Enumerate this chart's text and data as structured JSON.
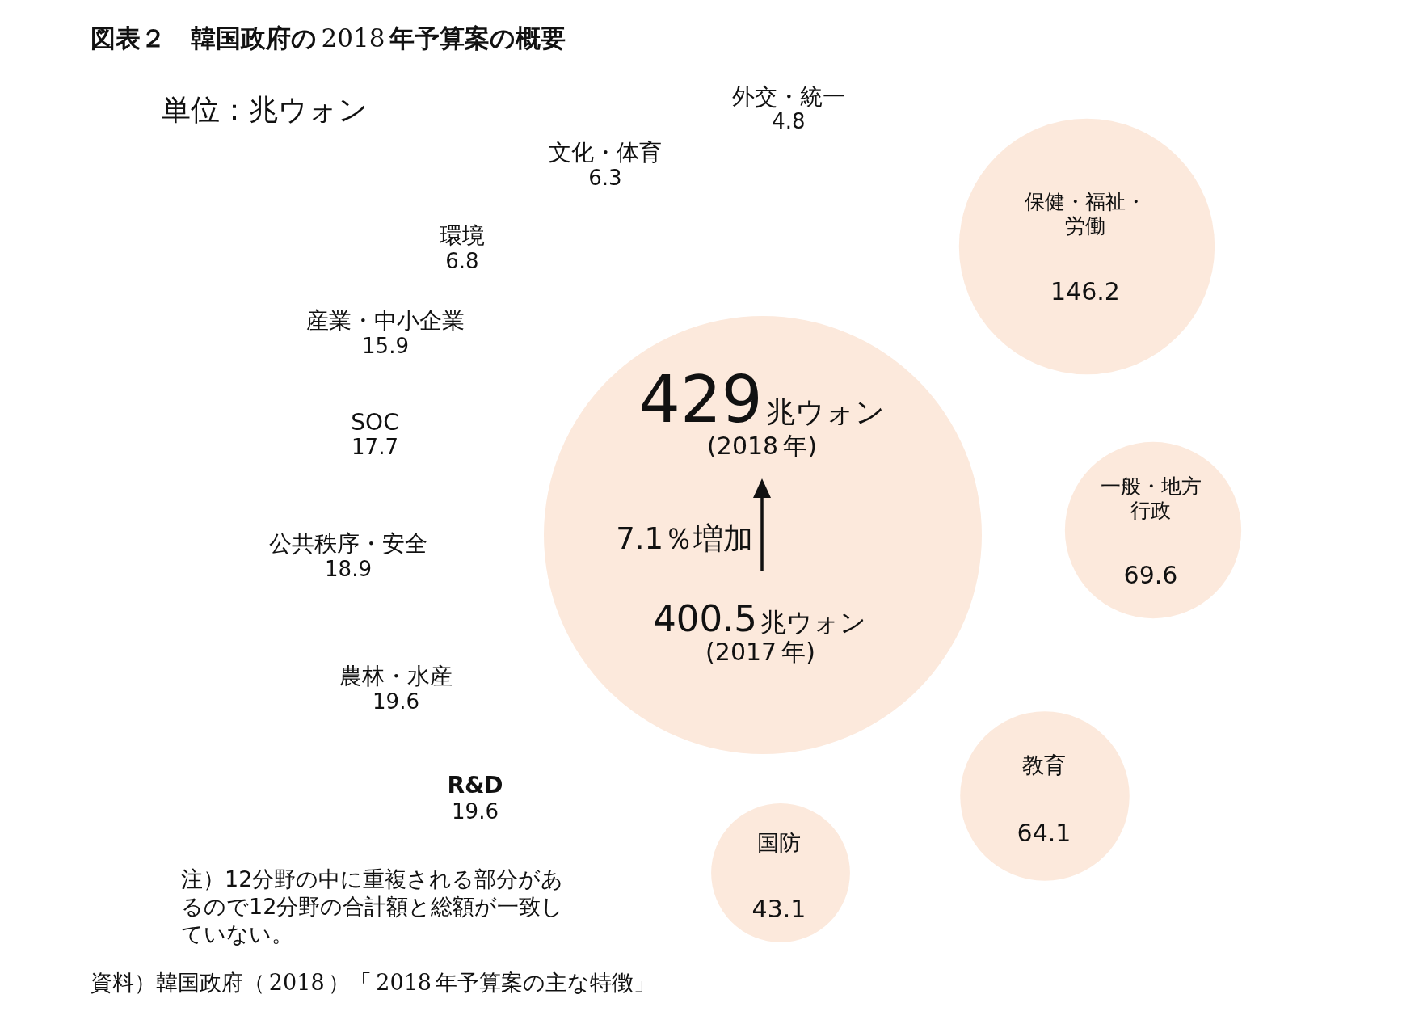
{
  "chart_data": {
    "type": "other",
    "title": "図表２　韓国政府の2018年予算案の概要",
    "subtitle": "単位：兆ウォン",
    "categories": [
      "(2018年)",
      "保健・福祉・労働",
      "一般・地方行政",
      "教育",
      "国防",
      "R&D",
      "農林・水産",
      "公共秩序・安全",
      "SOC",
      "産業・中小企業",
      "環境",
      "文化・体育",
      "外交・統一"
    ],
    "values": [
      429,
      146.2,
      69.6,
      64.1,
      43.1,
      19.6,
      19.6,
      18.9,
      17.7,
      15.9,
      6.8,
      6.3,
      4.8
    ],
    "value_labels": [
      "429兆ウォン",
      "146.2",
      "69.6",
      "64.1",
      "43.1",
      "19.6",
      "19.6",
      "18.9",
      "17.7",
      "15.9",
      "6.8",
      "6.3",
      "4.8"
    ],
    "colors": [
      "#fce9dc",
      "#fce9dc",
      "#fce9dc",
      "#fce9dc",
      "#fce9dc",
      null,
      null,
      null,
      null,
      null,
      null,
      null,
      null
    ],
    "annotations": [
      "7.1％増加",
      "400.5兆ウォン",
      "(2017年)",
      "注）12分野の中に重複される部分があるので12分野の合計額と総額が一致していない。",
      "資料）韓国政府（2018）「2018年予算案の主な特徴」"
    ]
  }
}
